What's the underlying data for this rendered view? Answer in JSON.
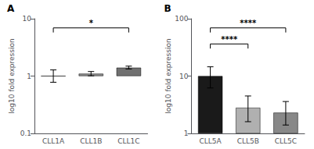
{
  "chart_data": [
    {
      "type": "bar",
      "title": "A",
      "categories": [
        "CLL1A",
        "CLL1B",
        "CLL1C"
      ],
      "values": [
        1.0,
        1.1,
        1.4
      ],
      "errors_upper": [
        0.28,
        0.1,
        0.09
      ],
      "errors_lower": [
        0.22,
        0.09,
        0.07
      ],
      "colors": [
        "#1a1a1a",
        "#909090",
        "#707070"
      ],
      "ylabel": "log10 fold expression",
      "log": "y",
      "ylim": [
        0.1,
        10
      ],
      "yticks": [
        0.1,
        1,
        10
      ],
      "grid": false,
      "annotations": [
        {
          "text": "*",
          "from": "CLL1A",
          "to": "CLL1C"
        }
      ]
    },
    {
      "type": "bar",
      "title": "B",
      "categories": [
        "CLL5A",
        "CLL5B",
        "CLL5C"
      ],
      "values": [
        10.0,
        2.8,
        2.3
      ],
      "errors_upper": [
        4.5,
        1.7,
        1.3
      ],
      "errors_lower": [
        3.8,
        1.2,
        0.9
      ],
      "colors": [
        "#1a1a1a",
        "#b0b0b0",
        "#888888"
      ],
      "ylabel": "log10 fold expression",
      "log": "y",
      "ylim": [
        1,
        100
      ],
      "yticks": [
        1,
        10,
        100
      ],
      "grid": false,
      "annotations": [
        {
          "text": "****",
          "from": "CLL5A",
          "to": "CLL5B"
        },
        {
          "text": "****",
          "from": "CLL5A",
          "to": "CLL5C"
        }
      ]
    }
  ]
}
